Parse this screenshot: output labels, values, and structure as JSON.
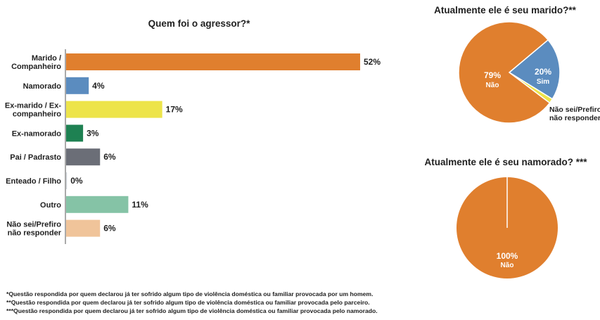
{
  "chart_data": [
    {
      "type": "bar",
      "orientation": "horizontal",
      "title": "Quem foi o agressor?*",
      "categories": [
        [
          "Marido /",
          "Companheiro"
        ],
        [
          "Namorado"
        ],
        [
          "Ex-marido / Ex-",
          "companheiro"
        ],
        [
          "Ex-namorado"
        ],
        [
          "Pai / Padrasto"
        ],
        [
          "Enteado / Filho"
        ],
        [
          "Outro"
        ],
        [
          "Não sei/Prefiro",
          "não responder"
        ]
      ],
      "values": [
        52,
        4,
        17,
        3,
        6,
        0,
        11,
        6
      ],
      "value_labels": [
        "52%",
        "4%",
        "17%",
        "3%",
        "6%",
        "0%",
        "11%",
        "6%"
      ],
      "colors": [
        "#e07f2e",
        "#5b8cbf",
        "#ede44a",
        "#1e8152",
        "#6b6e77",
        "#cfd5da",
        "#85c3a6",
        "#f0c49a"
      ],
      "xlim": [
        0,
        52
      ]
    },
    {
      "type": "pie",
      "title": "Atualmente ele é seu marido?**",
      "slices": [
        {
          "name": "Sim",
          "value": 20,
          "label": "20%",
          "color": "#5b8cbf"
        },
        {
          "name": "Não sei/Prefiro não responder",
          "value": 1.5,
          "label": "",
          "color": "#ede44a"
        },
        {
          "name": "Não",
          "value": 79,
          "label": "79%",
          "color": "#e07f2e"
        }
      ],
      "outside_label": [
        "Não sei/Prefiro",
        "não responder"
      ]
    },
    {
      "type": "pie",
      "title": "Atualmente ele é seu namorado? ***",
      "slices": [
        {
          "name": "Não",
          "value": 100,
          "label": "100%",
          "color": "#e07f2e"
        }
      ]
    }
  ],
  "footnotes": [
    "*Questão respondida por quem declarou já ter sofrido algum tipo de violência doméstica ou familiar provocada por um homem.",
    "**Questão respondida por quem declarou já ter sofrido algum tipo de violência doméstica ou familiar provocada pelo parceiro.",
    "***Questão respondida por quem declarou já ter sofrido algum tipo de violência doméstica ou familiar provocada pelo namorado."
  ]
}
